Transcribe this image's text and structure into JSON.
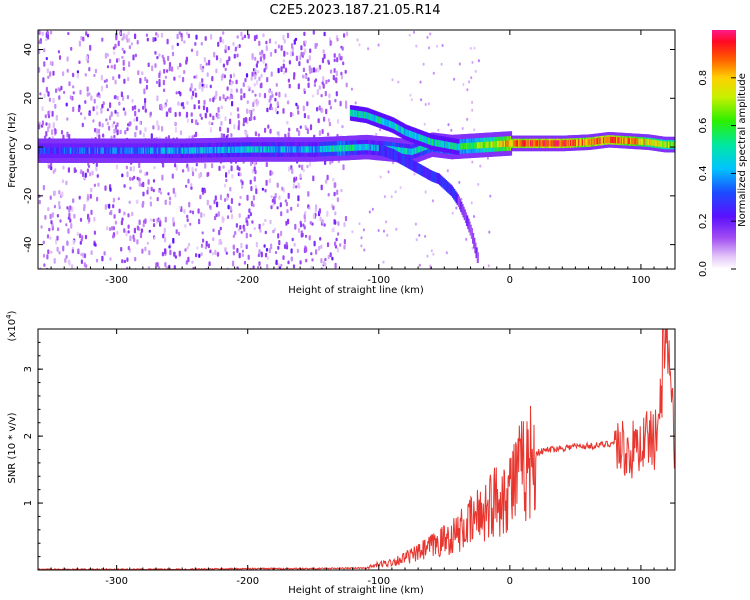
{
  "title": "C2E5.2023.187.21.05.R14",
  "chart_data": [
    {
      "type": "heatmap",
      "xlabel": "Height of straight line (km)",
      "ylabel": "Frequency (Hz)",
      "xlim": [
        -360,
        126
      ],
      "ylim": [
        -50,
        48
      ],
      "xticks": [
        -300,
        -200,
        -100,
        0,
        100
      ],
      "yticks": [
        -40,
        -20,
        0,
        20,
        40
      ],
      "colorbar": {
        "label": "Normalized spectral amplitude",
        "range": [
          0,
          1
        ],
        "ticks": [
          "0.0",
          "0.2",
          "0.4",
          "0.6",
          "0.8"
        ]
      },
      "main_band": {
        "x": [
          -355,
          -300,
          -250,
          -200,
          -150,
          -128,
          -110,
          -90,
          -75,
          -60,
          -45,
          -30,
          -15,
          0,
          20,
          40,
          60,
          75,
          90,
          105,
          118,
          126
        ],
        "frequency": [
          -1.5,
          -1.5,
          -1.5,
          -1,
          -1,
          -0.5,
          0,
          -1,
          -2,
          1,
          0,
          0.5,
          1,
          1.5,
          1.5,
          1.5,
          2,
          3,
          2.5,
          2,
          1,
          1
        ],
        "amplitude": [
          0.3,
          0.35,
          0.4,
          0.45,
          0.4,
          0.55,
          0.4,
          0.5,
          0.45,
          0.5,
          0.55,
          0.6,
          0.7,
          0.85,
          0.9,
          0.9,
          0.85,
          0.9,
          0.85,
          0.75,
          0.7,
          0.65
        ]
      },
      "upper_branch": {
        "x": [
          -122,
          -110,
          -100,
          -90,
          -80,
          -70,
          -60,
          -50,
          -40
        ],
        "frequency": [
          14,
          13,
          11,
          9,
          6,
          4,
          2,
          1,
          0
        ]
      },
      "lower_branch": {
        "x": [
          -100,
          -90,
          -80,
          -70,
          -60,
          -55,
          -45,
          -40,
          -35,
          -30,
          -25
        ],
        "frequency": [
          -1,
          -3,
          -6,
          -9,
          -12,
          -13,
          -18,
          -22,
          -28,
          -35,
          -46
        ]
      }
    },
    {
      "type": "line",
      "xlabel": "Height of straight line (km)",
      "ylabel": "SNR (10 * v/v)",
      "yscale_label": "(x10",
      "yscale_exp": "4",
      "yscale_close": ")",
      "xlim": [
        -360,
        126
      ],
      "ylim": [
        0,
        3.6
      ],
      "xticks": [
        -300,
        -200,
        -100,
        0,
        100
      ],
      "yticks": [
        1,
        2,
        3
      ],
      "color": "#e8362f",
      "series": [
        {
          "x": [
            -360,
            -300,
            -250,
            -200,
            -150,
            -110,
            -100,
            -90,
            -80,
            -70,
            -60,
            -50,
            -40,
            -30,
            -20,
            -10,
            0,
            10,
            20,
            30,
            40,
            50,
            60,
            70,
            80,
            85,
            90,
            95,
            100,
            105,
            110,
            115,
            120,
            126
          ],
          "y": [
            0.01,
            0.01,
            0.01,
            0.02,
            0.02,
            0.03,
            0.08,
            0.12,
            0.18,
            0.25,
            0.35,
            0.45,
            0.55,
            0.7,
            0.9,
            1.05,
            1.25,
            1.5,
            1.75,
            1.8,
            1.82,
            1.85,
            1.85,
            1.87,
            1.9,
            1.85,
            1.75,
            1.8,
            1.9,
            2.0,
            1.9,
            2.5,
            3.4,
            1.82
          ]
        }
      ]
    }
  ]
}
